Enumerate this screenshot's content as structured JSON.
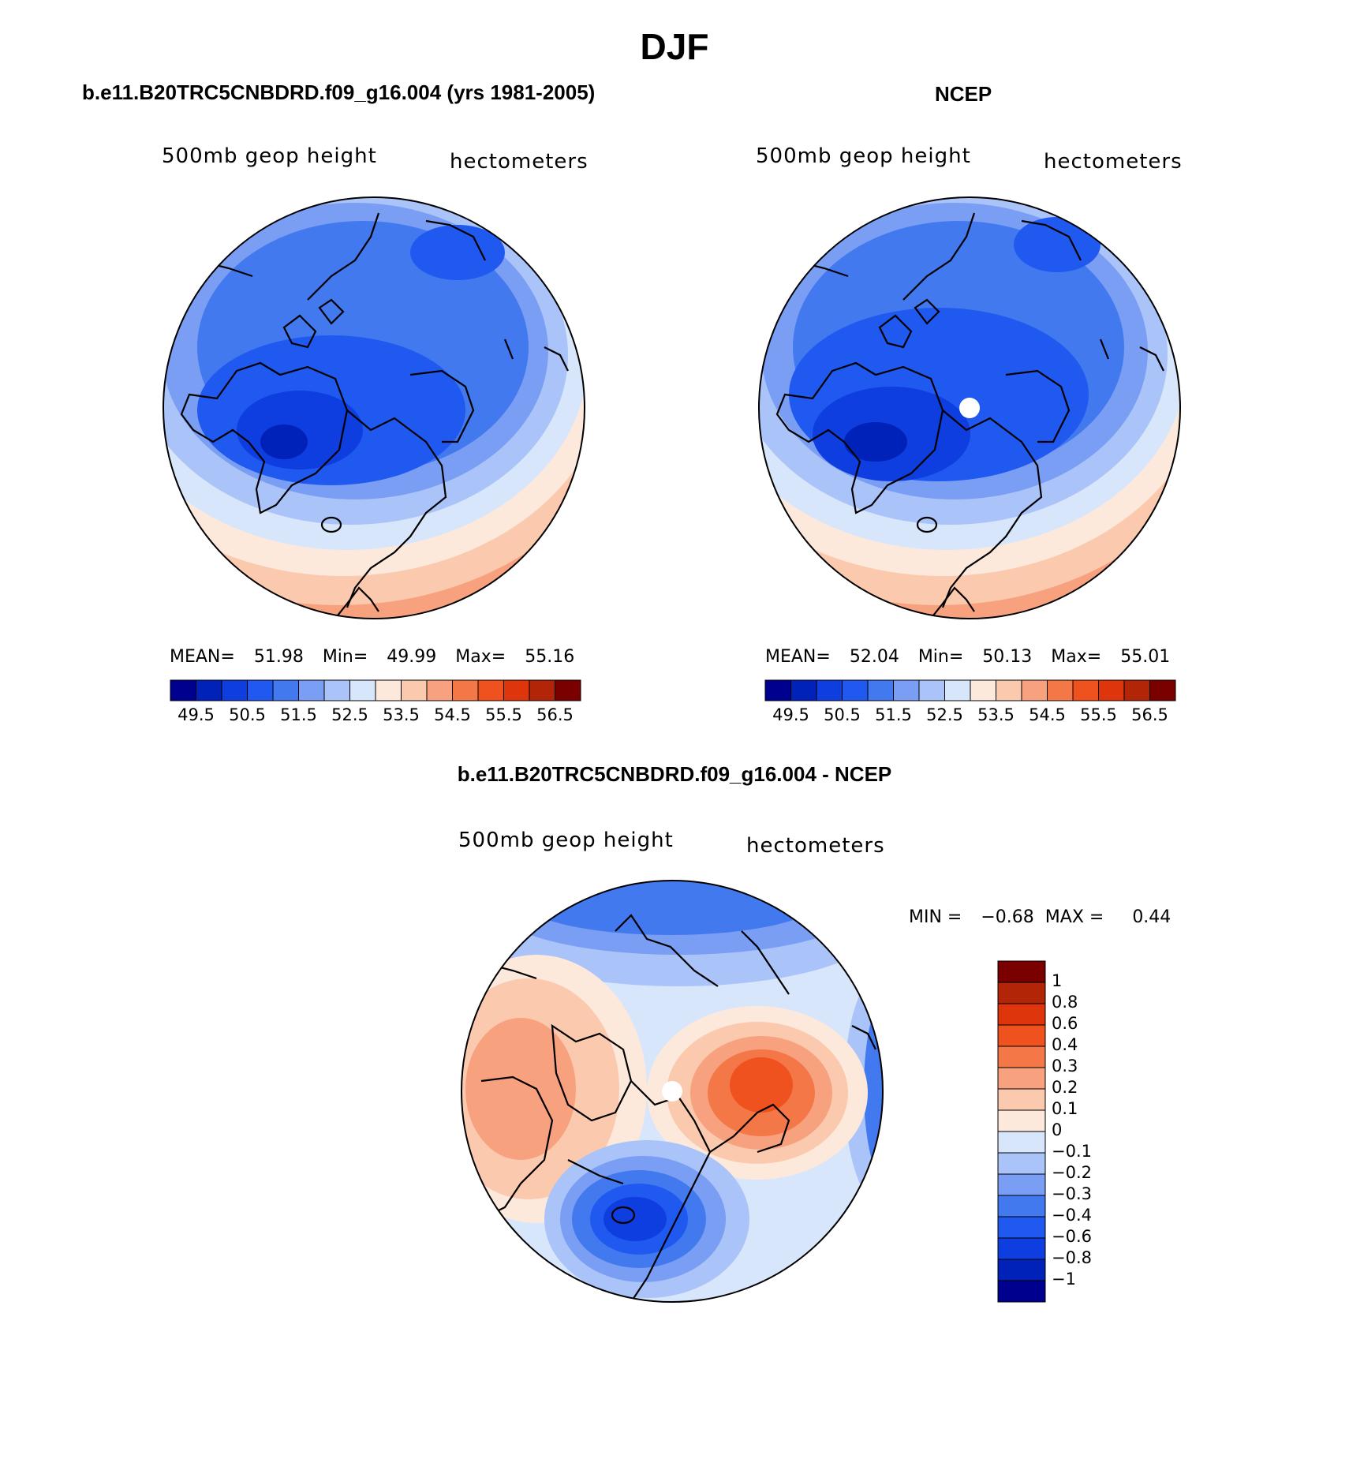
{
  "title": "DJF",
  "colors": {
    "abs_scale": [
      "#00008f",
      "#0022b8",
      "#0e3de0",
      "#1f59f0",
      "#4279ee",
      "#7a9ef3",
      "#aac3f8",
      "#d8e6fb",
      "#fde9dc",
      "#fbc9ae",
      "#f7a17e",
      "#f47747",
      "#f0521f",
      "#df350d",
      "#b22607",
      "#7a0000"
    ],
    "diff_scale": [
      "#00008f",
      "#0022b8",
      "#0e3de0",
      "#1f59f0",
      "#4279ee",
      "#7a9ef3",
      "#aac3f8",
      "#d8e6fb",
      "#fde9dc",
      "#fbc9ae",
      "#f7a17e",
      "#f47747",
      "#f0521f",
      "#df350d",
      "#b22607",
      "#7a0000"
    ],
    "missing_dot": "#ffffff",
    "coastline": "#000000"
  },
  "panels": {
    "model": {
      "title": "b.e11.B20TRC5CNBDRD.f09_g16.004 (yrs 1981-2005)",
      "variable": "500mb geop height",
      "units": "hectometers",
      "mean_label": "MEAN=",
      "mean": "51.98",
      "min_label": "Min=",
      "min": "49.99",
      "max_label": "Max=",
      "max": "55.16"
    },
    "obs": {
      "title": "NCEP",
      "variable": "500mb geop height",
      "units": "hectometers",
      "mean_label": "MEAN=",
      "mean": "52.04",
      "min_label": "Min=",
      "min": "50.13",
      "max_label": "Max=",
      "max": "55.01"
    },
    "diff": {
      "title": "b.e11.B20TRC5CNBDRD.f09_g16.004 - NCEP",
      "variable": "500mb geop height",
      "units": "hectometers",
      "min_label": "MIN =",
      "min": "−0.68",
      "max_label": "MAX =",
      "max": "0.44"
    }
  },
  "colorbar_abs_ticks": [
    "49.5",
    "50.5",
    "51.5",
    "52.5",
    "53.5",
    "54.5",
    "55.5",
    "56.5"
  ],
  "colorbar_diff_ticks": [
    "1",
    "0.8",
    "0.6",
    "0.4",
    "0.3",
    "0.2",
    "0.1",
    "0",
    "−0.1",
    "−0.2",
    "−0.3",
    "−0.4",
    "−0.6",
    "−0.8",
    "−1"
  ]
}
